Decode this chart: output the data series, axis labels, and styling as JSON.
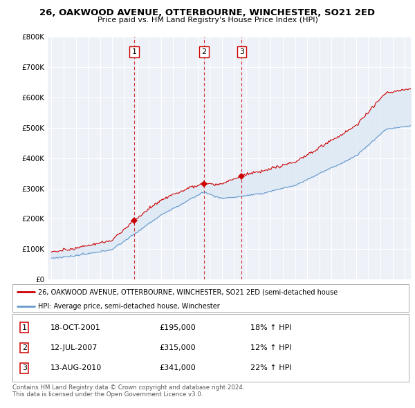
{
  "title": "26, OAKWOOD AVENUE, OTTERBOURNE, WINCHESTER, SO21 2ED",
  "subtitle": "Price paid vs. HM Land Registry's House Price Index (HPI)",
  "ylim": [
    0,
    800000
  ],
  "yticks": [
    0,
    100000,
    200000,
    300000,
    400000,
    500000,
    600000,
    700000,
    800000
  ],
  "ytick_labels": [
    "£0",
    "£100K",
    "£200K",
    "£300K",
    "£400K",
    "£500K",
    "£600K",
    "£700K",
    "£800K"
  ],
  "xlim_start": 1994.7,
  "xlim_end": 2024.5,
  "sales": [
    {
      "num": 1,
      "year": 2001.8,
      "price": 195000,
      "label": "18-OCT-2001",
      "amount": "£195,000",
      "hpi_pct": "18% ↑ HPI"
    },
    {
      "num": 2,
      "year": 2007.53,
      "price": 315000,
      "label": "12-JUL-2007",
      "amount": "£315,000",
      "hpi_pct": "12% ↑ HPI"
    },
    {
      "num": 3,
      "year": 2010.62,
      "price": 341000,
      "label": "13-AUG-2010",
      "amount": "£341,000",
      "hpi_pct": "22% ↑ HPI"
    }
  ],
  "legend_line1": "26, OAKWOOD AVENUE, OTTERBOURNE, WINCHESTER, SO21 2ED (semi-detached house",
  "legend_line2": "HPI: Average price, semi-detached house, Winchester",
  "footer1": "Contains HM Land Registry data © Crown copyright and database right 2024.",
  "footer2": "This data is licensed under the Open Government Licence v3.0.",
  "property_line_color": "#cc0000",
  "hpi_line_color": "#6699cc",
  "fill_color": "#dde8f5",
  "background_color": "#ffffff",
  "chart_bg_color": "#eef2f8",
  "grid_color": "#ffffff"
}
